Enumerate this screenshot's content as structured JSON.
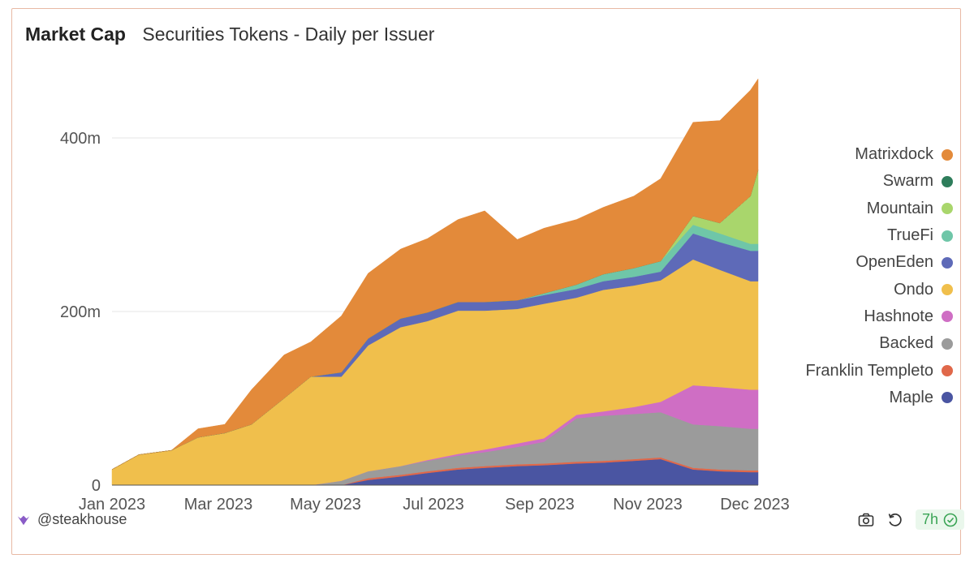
{
  "header": {
    "title": "Market Cap",
    "subtitle": "Securities Tokens - Daily per Issuer"
  },
  "footer": {
    "brand": "@steakhouse",
    "age": "7h"
  },
  "icons": {
    "brand": "steakhouse-logo-icon",
    "camera": "camera-icon",
    "refresh": "refresh-icon",
    "check": "check-circle-icon"
  },
  "colors": {
    "grid": "#e6e6e6",
    "axis_text": "#555555",
    "badge_green": "#3aa455"
  },
  "chart_data": {
    "type": "area",
    "stacked": true,
    "title": "Market Cap",
    "subtitle": "Securities Tokens - Daily per Issuer",
    "xlabel": "",
    "ylabel": "",
    "x_ticks": [
      "Jan 2023",
      "Mar 2023",
      "May 2023",
      "Jul 2023",
      "Sep 2023",
      "Nov 2023",
      "Dec 2023"
    ],
    "y_ticks": [
      "0",
      "200m",
      "400m"
    ],
    "ylim": [
      0,
      480
    ],
    "grid": true,
    "legend_position": "right",
    "x": [
      "2023-01-01",
      "2023-01-15",
      "2023-02-01",
      "2023-02-15",
      "2023-03-01",
      "2023-03-15",
      "2023-04-01",
      "2023-04-15",
      "2023-05-01",
      "2023-05-15",
      "2023-06-01",
      "2023-06-15",
      "2023-07-01",
      "2023-07-15",
      "2023-08-01",
      "2023-08-15",
      "2023-09-01",
      "2023-09-15",
      "2023-10-01",
      "2023-10-15",
      "2023-11-01",
      "2023-11-15",
      "2023-12-01",
      "2023-12-05"
    ],
    "series": [
      {
        "name": "Maple",
        "color": "#4a55a2",
        "values": [
          0,
          0,
          0,
          0,
          0,
          0,
          0,
          0,
          0,
          6,
          10,
          14,
          18,
          20,
          22,
          23,
          25,
          26,
          28,
          30,
          18,
          16,
          15,
          15
        ]
      },
      {
        "name": "Franklin Templeto",
        "color": "#e0684a",
        "values": [
          0,
          0,
          0,
          0,
          0,
          0,
          0,
          0,
          0,
          2,
          2,
          2,
          2,
          2,
          2,
          2,
          2,
          2,
          2,
          2,
          2,
          2,
          2,
          2
        ]
      },
      {
        "name": "Backed",
        "color": "#9b9b9b",
        "values": [
          0,
          0,
          0,
          0,
          0,
          0,
          0,
          0,
          5,
          8,
          10,
          12,
          14,
          16,
          20,
          25,
          50,
          52,
          52,
          52,
          50,
          50,
          48,
          48
        ]
      },
      {
        "name": "Hashnote",
        "color": "#cf6ec4",
        "values": [
          0,
          0,
          0,
          0,
          0,
          0,
          0,
          0,
          0,
          0,
          0,
          1,
          2,
          3,
          4,
          4,
          4,
          5,
          8,
          12,
          45,
          45,
          45,
          45
        ]
      },
      {
        "name": "Ondo",
        "color": "#f0bf4c",
        "values": [
          18,
          35,
          40,
          55,
          60,
          70,
          100,
          125,
          120,
          145,
          160,
          160,
          165,
          160,
          155,
          155,
          135,
          140,
          140,
          140,
          145,
          135,
          125,
          125
        ]
      },
      {
        "name": "OpenEden",
        "color": "#5e6ab8",
        "values": [
          0,
          0,
          0,
          0,
          0,
          0,
          0,
          0,
          5,
          8,
          10,
          10,
          10,
          10,
          10,
          10,
          10,
          10,
          10,
          10,
          30,
          32,
          35,
          35
        ]
      },
      {
        "name": "TrueFi",
        "color": "#6fc6a8",
        "values": [
          0,
          0,
          0,
          0,
          0,
          0,
          0,
          0,
          0,
          0,
          0,
          0,
          0,
          0,
          0,
          2,
          5,
          8,
          10,
          12,
          10,
          10,
          8,
          8
        ]
      },
      {
        "name": "Mountain",
        "color": "#a9d66c",
        "values": [
          0,
          0,
          0,
          0,
          0,
          0,
          0,
          0,
          0,
          0,
          0,
          0,
          0,
          0,
          0,
          0,
          0,
          0,
          0,
          0,
          10,
          12,
          55,
          85
        ]
      },
      {
        "name": "Swarm",
        "color": "#2e7d5b",
        "values": [
          0,
          0,
          0,
          0,
          0,
          0,
          0,
          0,
          0,
          0,
          0,
          0,
          0,
          0,
          0,
          0,
          0,
          0,
          0,
          0,
          0,
          0,
          0,
          0
        ]
      },
      {
        "name": "Matrixdock",
        "color": "#e38a3a",
        "values": [
          0,
          0,
          0,
          10,
          10,
          40,
          50,
          40,
          65,
          75,
          80,
          85,
          95,
          105,
          70,
          75,
          75,
          77,
          83,
          95,
          108,
          118,
          122,
          105
        ]
      }
    ]
  }
}
